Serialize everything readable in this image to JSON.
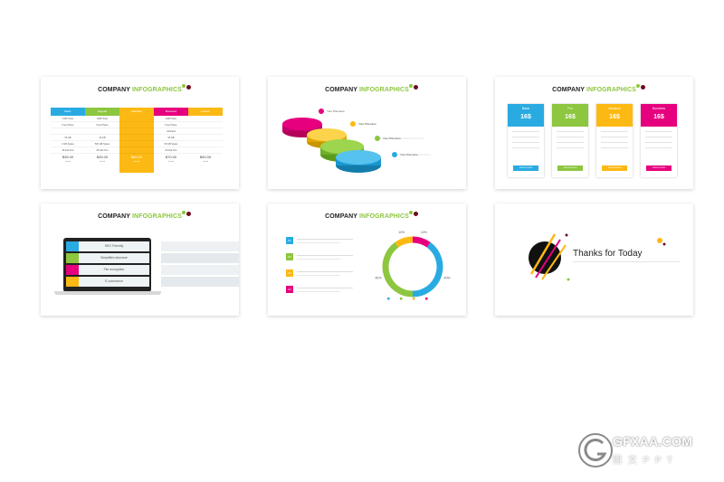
{
  "slides": {
    "title_part1": "COMPANY",
    "title_part2": "INFOGRAPHICS",
    "s1": {
      "columns": [
        {
          "name": "Basic",
          "color": "#29abe2",
          "rows": [
            "1GB Hosts",
            "Free Phone",
            "",
            "50 GB",
            "2 GB Space",
            "25 Add Ons"
          ],
          "price": "$35.00",
          "month": "/month"
        },
        {
          "name": "Regular",
          "color": "#8dc63f",
          "rows": [
            "2GB Hosts",
            "Free Phone",
            "",
            "20 GB",
            "500 GB Space",
            "25 Add Ons"
          ],
          "price": "$45.00",
          "month": "/month"
        },
        {
          "name": "Standard",
          "color": "#fdb913",
          "rows": [
            "",
            "",
            "",
            "",
            "",
            ""
          ],
          "price": "$60.00",
          "month": "/month"
        },
        {
          "name": "Business",
          "color": "#e6007e",
          "rows": [
            "4GB Hosts",
            "Free Phone",
            "unlimited",
            "50 GB",
            "50 GB Space",
            "25 Add Ons"
          ],
          "price": "$70.00",
          "month": "/month"
        },
        {
          "name": "Custom",
          "color": "#fdb913",
          "rows": [
            "",
            "",
            "",
            "",
            "",
            ""
          ],
          "price": "$90.00",
          "month": "/month"
        }
      ]
    },
    "s2": {
      "items": [
        "Your Title Here",
        "Your Title Here",
        "Your Title Here",
        "Your Title Here"
      ]
    },
    "s3": {
      "cards": [
        {
          "name": "Basic",
          "price": "16$",
          "color": "#29abe2",
          "btn": "Lorem Ipsum"
        },
        {
          "name": "Pro",
          "price": "16$",
          "color": "#8dc63f",
          "btn": "Lorem Ipsum"
        },
        {
          "name": "Advance",
          "price": "16$",
          "color": "#fdb913",
          "btn": "Lorem Ipsum"
        },
        {
          "name": "Business",
          "price": "16$",
          "color": "#e6007e",
          "btn": "Lorem Ipsum"
        }
      ]
    },
    "s4": {
      "features": [
        {
          "label": "SEO Friendly",
          "color": "#29abe2"
        },
        {
          "label": "Simplified structure",
          "color": "#8dc63f"
        },
        {
          "label": "File encryption",
          "color": "#e6007e"
        },
        {
          "label": "E-commerce",
          "color": "#fdb913"
        }
      ]
    },
    "s5": {
      "items": [
        {
          "num": "01",
          "color": "#29abe2"
        },
        {
          "num": "02",
          "color": "#8dc63f"
        },
        {
          "num": "03",
          "color": "#fdb913"
        },
        {
          "num": "04",
          "color": "#e6007e"
        }
      ],
      "donut": {
        "values": [
          40,
          40,
          10,
          10
        ],
        "labels": [
          "40%",
          "40%",
          "10%",
          "10%"
        ],
        "colors": [
          "#29abe2",
          "#8dc63f",
          "#fdb913",
          "#e6007e"
        ]
      }
    },
    "s6": {
      "title": "Thanks for Today"
    }
  },
  "watermark": {
    "text": "GFXAA.COM",
    "sub": "图 文 P P T"
  }
}
